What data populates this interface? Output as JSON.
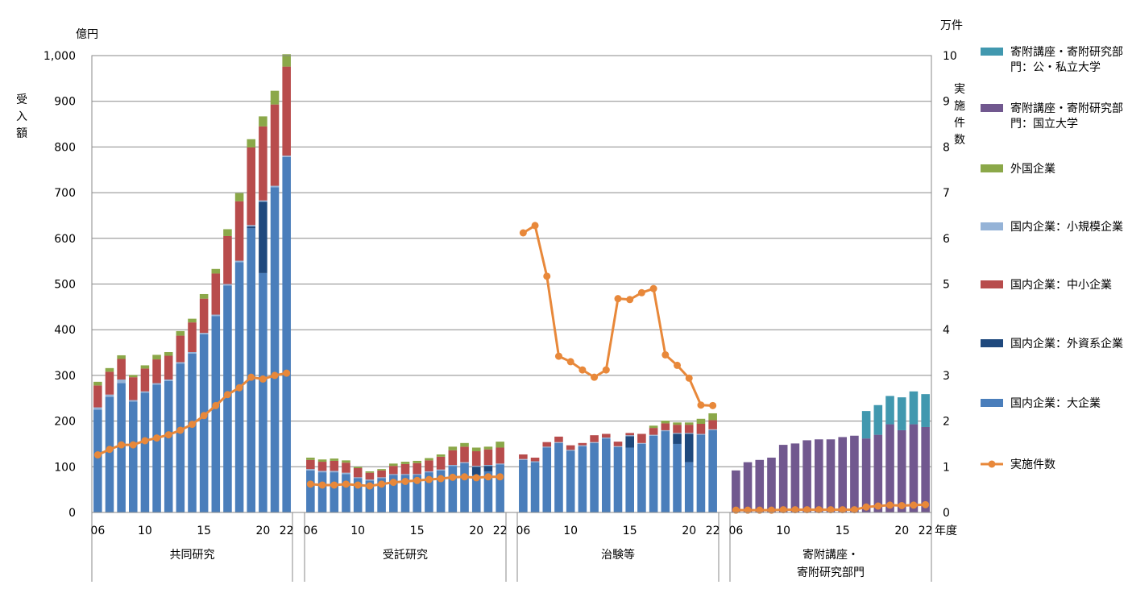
{
  "chart_data": {
    "type": "bar",
    "y_left_unit": "億円",
    "y_left_label": "受入額",
    "y_right_unit": "万件",
    "y_right_label": "実施件数",
    "x_unit": "年度",
    "y_left_ticks": [
      "0",
      "100",
      "200",
      "300",
      "400",
      "500",
      "600",
      "700",
      "800",
      "900",
      "1,000"
    ],
    "y_right_ticks": [
      "0",
      "1",
      "2",
      "3",
      "4",
      "5",
      "6",
      "7",
      "8",
      "9",
      "10"
    ],
    "ylim_left": [
      0,
      1000
    ],
    "ylim_right": [
      0,
      10
    ],
    "legend": [
      {
        "key": "kifu_public",
        "label": "寄附講座・寄附研究部門：公・私立大学",
        "color": "#4198AF"
      },
      {
        "key": "kifu_national",
        "label": "寄附講座・寄附研究部門：国立大学",
        "color": "#71588F"
      },
      {
        "key": "foreign",
        "label": "外国企業",
        "color": "#8BA849"
      },
      {
        "key": "small",
        "label": "国内企業：小規模企業",
        "color": "#95B3D7"
      },
      {
        "key": "sme",
        "label": "国内企業：中小企業",
        "color": "#B84C4C"
      },
      {
        "key": "foreign_cap",
        "label": "国内企業：外資系企業",
        "color": "#1F497D"
      },
      {
        "key": "large",
        "label": "国内企業：大企業",
        "color": "#4A7EBB"
      },
      {
        "key": "count",
        "label": "実施件数",
        "color": "#E8883A"
      }
    ],
    "groups": [
      {
        "name": "共同研究",
        "years": [
          6,
          7,
          8,
          9,
          10,
          11,
          12,
          13,
          14,
          15,
          16,
          17,
          18,
          19,
          20,
          21,
          22
        ],
        "x_ticks": [
          "06",
          "10",
          "15",
          "20",
          "22"
        ],
        "segments": {
          "large": [
            225,
            253,
            283,
            243,
            262,
            280,
            288,
            326,
            348,
            390,
            430,
            497,
            548,
            622,
            524,
            712,
            778
          ],
          "foreign_cap": [
            0,
            0,
            0,
            0,
            0,
            0,
            0,
            0,
            0,
            0,
            0,
            0,
            0,
            4,
            156,
            0,
            0
          ],
          "small": [
            5,
            5,
            8,
            3,
            3,
            3,
            3,
            3,
            3,
            3,
            3,
            3,
            3,
            3,
            3,
            3,
            3
          ],
          "sme": [
            48,
            50,
            45,
            50,
            50,
            52,
            52,
            58,
            65,
            75,
            90,
            105,
            130,
            170,
            162,
            178,
            195
          ],
          "foreign": [
            8,
            8,
            8,
            5,
            7,
            10,
            8,
            10,
            8,
            10,
            10,
            15,
            18,
            18,
            22,
            30,
            27
          ],
          "kifu_national": [],
          "kifu_public": []
        },
        "count": [
          1.26,
          1.38,
          1.48,
          1.48,
          1.57,
          1.63,
          1.7,
          1.8,
          1.93,
          2.12,
          2.34,
          2.58,
          2.73,
          2.96,
          2.92,
          3.0,
          3.05
        ]
      },
      {
        "name": "受託研究",
        "years": [
          6,
          7,
          8,
          9,
          10,
          11,
          12,
          13,
          14,
          15,
          16,
          17,
          18,
          19,
          20,
          21,
          22
        ],
        "x_ticks": [
          "06",
          "10",
          "15",
          "20",
          "22"
        ],
        "segments": {
          "large": [
            92,
            88,
            88,
            84,
            75,
            70,
            75,
            82,
            82,
            82,
            88,
            92,
            102,
            108,
            82,
            90,
            105
          ],
          "foreign_cap": [
            0,
            0,
            0,
            0,
            0,
            0,
            0,
            0,
            0,
            0,
            0,
            0,
            0,
            0,
            18,
            12,
            0
          ],
          "small": [
            3,
            3,
            3,
            3,
            2,
            2,
            2,
            2,
            2,
            2,
            2,
            2,
            2,
            2,
            2,
            2,
            2
          ],
          "sme": [
            20,
            20,
            22,
            22,
            20,
            15,
            15,
            18,
            22,
            24,
            24,
            28,
            32,
            34,
            32,
            34,
            35
          ],
          "foreign": [
            5,
            5,
            5,
            5,
            3,
            3,
            3,
            5,
            5,
            5,
            5,
            5,
            8,
            8,
            8,
            6,
            13
          ],
          "kifu_national": [],
          "kifu_public": []
        },
        "count": [
          0.62,
          0.6,
          0.6,
          0.62,
          0.6,
          0.58,
          0.62,
          0.66,
          0.68,
          0.7,
          0.72,
          0.74,
          0.77,
          0.78,
          0.76,
          0.78,
          0.78
        ]
      },
      {
        "name": "治験等",
        "years": [
          6,
          7,
          8,
          9,
          10,
          11,
          12,
          13,
          14,
          15,
          16,
          17,
          18,
          19,
          20,
          21,
          22
        ],
        "x_ticks": [
          "06",
          "10",
          "15",
          "20",
          "22"
        ],
        "segments": {
          "large": [
            115,
            110,
            142,
            152,
            135,
            145,
            152,
            162,
            143,
            142,
            150,
            168,
            178,
            150,
            110,
            170,
            180
          ],
          "foreign_cap": [
            0,
            0,
            0,
            0,
            0,
            0,
            0,
            0,
            0,
            25,
            0,
            0,
            0,
            22,
            62,
            0,
            0
          ],
          "small": [
            2,
            2,
            2,
            2,
            2,
            2,
            2,
            2,
            2,
            2,
            2,
            2,
            2,
            2,
            2,
            2,
            2
          ],
          "sme": [
            10,
            8,
            10,
            12,
            10,
            5,
            15,
            8,
            10,
            5,
            20,
            15,
            15,
            18,
            18,
            22,
            20
          ],
          "foreign": [
            0,
            0,
            0,
            0,
            0,
            0,
            0,
            0,
            0,
            0,
            0,
            5,
            6,
            5,
            5,
            11,
            15
          ],
          "kifu_national": [],
          "kifu_public": []
        },
        "count": [
          6.12,
          6.28,
          5.17,
          3.42,
          3.3,
          3.12,
          2.96,
          3.12,
          4.68,
          4.66,
          4.81,
          4.9,
          3.45,
          3.22,
          2.94,
          2.35,
          2.34
        ]
      },
      {
        "name": "寄附講座・寄附研究部門",
        "years": [
          6,
          7,
          8,
          9,
          10,
          11,
          12,
          13,
          14,
          15,
          16,
          17,
          18,
          19,
          20,
          21,
          22
        ],
        "x_ticks": [
          "06",
          "10",
          "15",
          "20",
          "22"
        ],
        "segments": {
          "large": [],
          "foreign_cap": [],
          "small": [],
          "sme": [],
          "foreign": [],
          "kifu_national": [
            92,
            110,
            115,
            120,
            148,
            151,
            158,
            160,
            160,
            165,
            168,
            162,
            170,
            193,
            180,
            193,
            187
          ],
          "kifu_public": [
            0,
            0,
            0,
            0,
            0,
            0,
            0,
            0,
            0,
            0,
            0,
            60,
            65,
            62,
            72,
            72,
            72
          ]
        },
        "count": [
          0.05,
          0.05,
          0.05,
          0.05,
          0.06,
          0.06,
          0.06,
          0.06,
          0.06,
          0.06,
          0.06,
          0.12,
          0.14,
          0.16,
          0.15,
          0.16,
          0.17
        ]
      }
    ]
  }
}
